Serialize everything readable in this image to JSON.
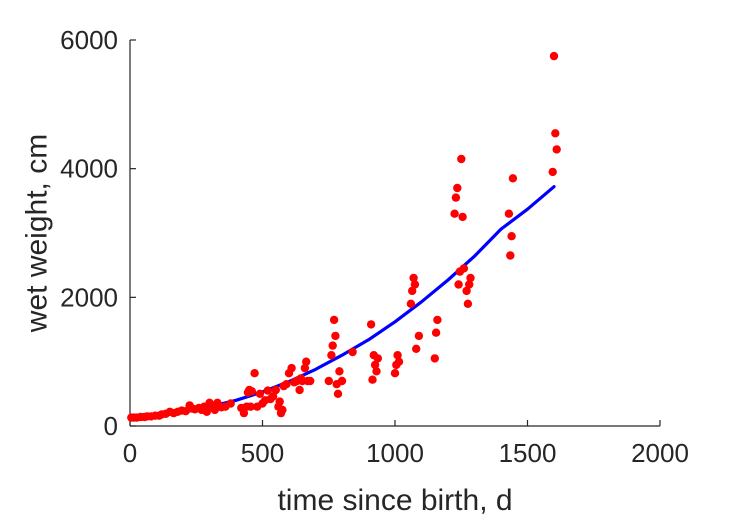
{
  "chart_data": {
    "type": "scatter",
    "title": "",
    "xlabel": "time since birth, d",
    "ylabel": "wet weight, cm",
    "xlim": [
      0,
      2000
    ],
    "ylim": [
      0,
      6000
    ],
    "xticks": [
      0,
      500,
      1000,
      1500,
      2000
    ],
    "yticks": [
      0,
      2000,
      4000,
      6000
    ],
    "xtick_labels": [
      "0",
      "500",
      "1000",
      "1500",
      "2000"
    ],
    "ytick_labels": [
      "0",
      "2000",
      "4000",
      "6000"
    ],
    "grid": false,
    "legend": "none",
    "colors": {
      "points": "#ff0000",
      "fit": "#0000ff",
      "axes": "#262626"
    },
    "series": [
      {
        "kind": "scatter",
        "x": [
          5,
          15,
          25,
          40,
          55,
          65,
          80,
          95,
          110,
          120,
          135,
          150,
          165,
          180,
          195,
          210,
          225,
          235,
          245,
          260,
          270,
          280,
          290,
          300,
          310,
          320,
          330,
          345,
          360,
          380,
          420,
          430,
          440,
          445,
          450,
          455,
          460,
          470,
          480,
          490,
          500,
          510,
          520,
          530,
          540,
          550,
          560,
          565,
          570,
          575,
          580,
          590,
          600,
          610,
          620,
          630,
          640,
          645,
          650,
          660,
          665,
          670,
          680,
          750,
          760,
          765,
          770,
          775,
          780,
          785,
          790,
          800,
          840,
          910,
          915,
          920,
          925,
          930,
          935,
          1000,
          1005,
          1010,
          1015,
          1060,
          1065,
          1070,
          1075,
          1080,
          1090,
          1150,
          1155,
          1160,
          1225,
          1230,
          1235,
          1240,
          1245,
          1250,
          1255,
          1260,
          1270,
          1275,
          1280,
          1285,
          1430,
          1435,
          1440,
          1445,
          1595,
          1600,
          1605,
          1610
        ],
        "y": [
          130,
          130,
          130,
          140,
          140,
          150,
          150,
          160,
          160,
          180,
          190,
          220,
          200,
          220,
          240,
          230,
          320,
          270,
          260,
          280,
          250,
          300,
          220,
          360,
          300,
          250,
          360,
          290,
          300,
          350,
          280,
          200,
          300,
          520,
          560,
          300,
          540,
          820,
          300,
          500,
          350,
          400,
          550,
          420,
          460,
          560,
          300,
          380,
          200,
          250,
          620,
          650,
          820,
          900,
          680,
          700,
          560,
          740,
          700,
          900,
          1000,
          700,
          700,
          700,
          1100,
          1250,
          1650,
          1400,
          650,
          500,
          850,
          700,
          1150,
          1580,
          720,
          1100,
          950,
          850,
          1050,
          820,
          950,
          1100,
          1000,
          1900,
          2100,
          2300,
          2200,
          1200,
          1400,
          1050,
          1450,
          1650,
          3300,
          3550,
          3700,
          2200,
          2400,
          4150,
          3250,
          2450,
          2100,
          1900,
          2200,
          2300,
          3300,
          2650,
          2950,
          3850,
          3950,
          5750,
          4550,
          4300
        ]
      },
      {
        "kind": "line",
        "x": [
          0,
          100,
          200,
          300,
          400,
          500,
          600,
          700,
          800,
          900,
          1000,
          1100,
          1200,
          1300,
          1400,
          1500,
          1600
        ],
        "y": [
          110,
          155,
          215,
          300,
          400,
          530,
          690,
          880,
          1100,
          1340,
          1620,
          1930,
          2270,
          2640,
          3060,
          3370,
          3720
        ]
      }
    ]
  }
}
